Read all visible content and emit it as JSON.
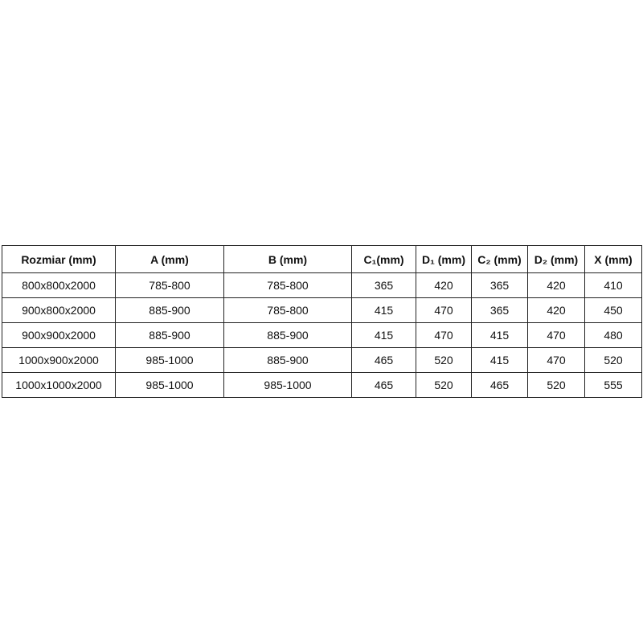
{
  "table": {
    "headers": [
      "Rozmiar (mm)",
      "A (mm)",
      "B (mm)",
      "C₁(mm)",
      "D₁ (mm)",
      "C₂ (mm)",
      "D₂ (mm)",
      "X (mm)"
    ],
    "rows": [
      [
        "800x800x2000",
        "785-800",
        "785-800",
        "365",
        "420",
        "365",
        "420",
        "410"
      ],
      [
        "900x800x2000",
        "885-900",
        "785-800",
        "415",
        "470",
        "365",
        "420",
        "450"
      ],
      [
        "900x900x2000",
        "885-900",
        "885-900",
        "415",
        "470",
        "415",
        "470",
        "480"
      ],
      [
        "1000x900x2000",
        "985-1000",
        "885-900",
        "465",
        "520",
        "415",
        "470",
        "520"
      ],
      [
        "1000x1000x2000",
        "985-1000",
        "985-1000",
        "465",
        "520",
        "465",
        "520",
        "555"
      ]
    ]
  }
}
